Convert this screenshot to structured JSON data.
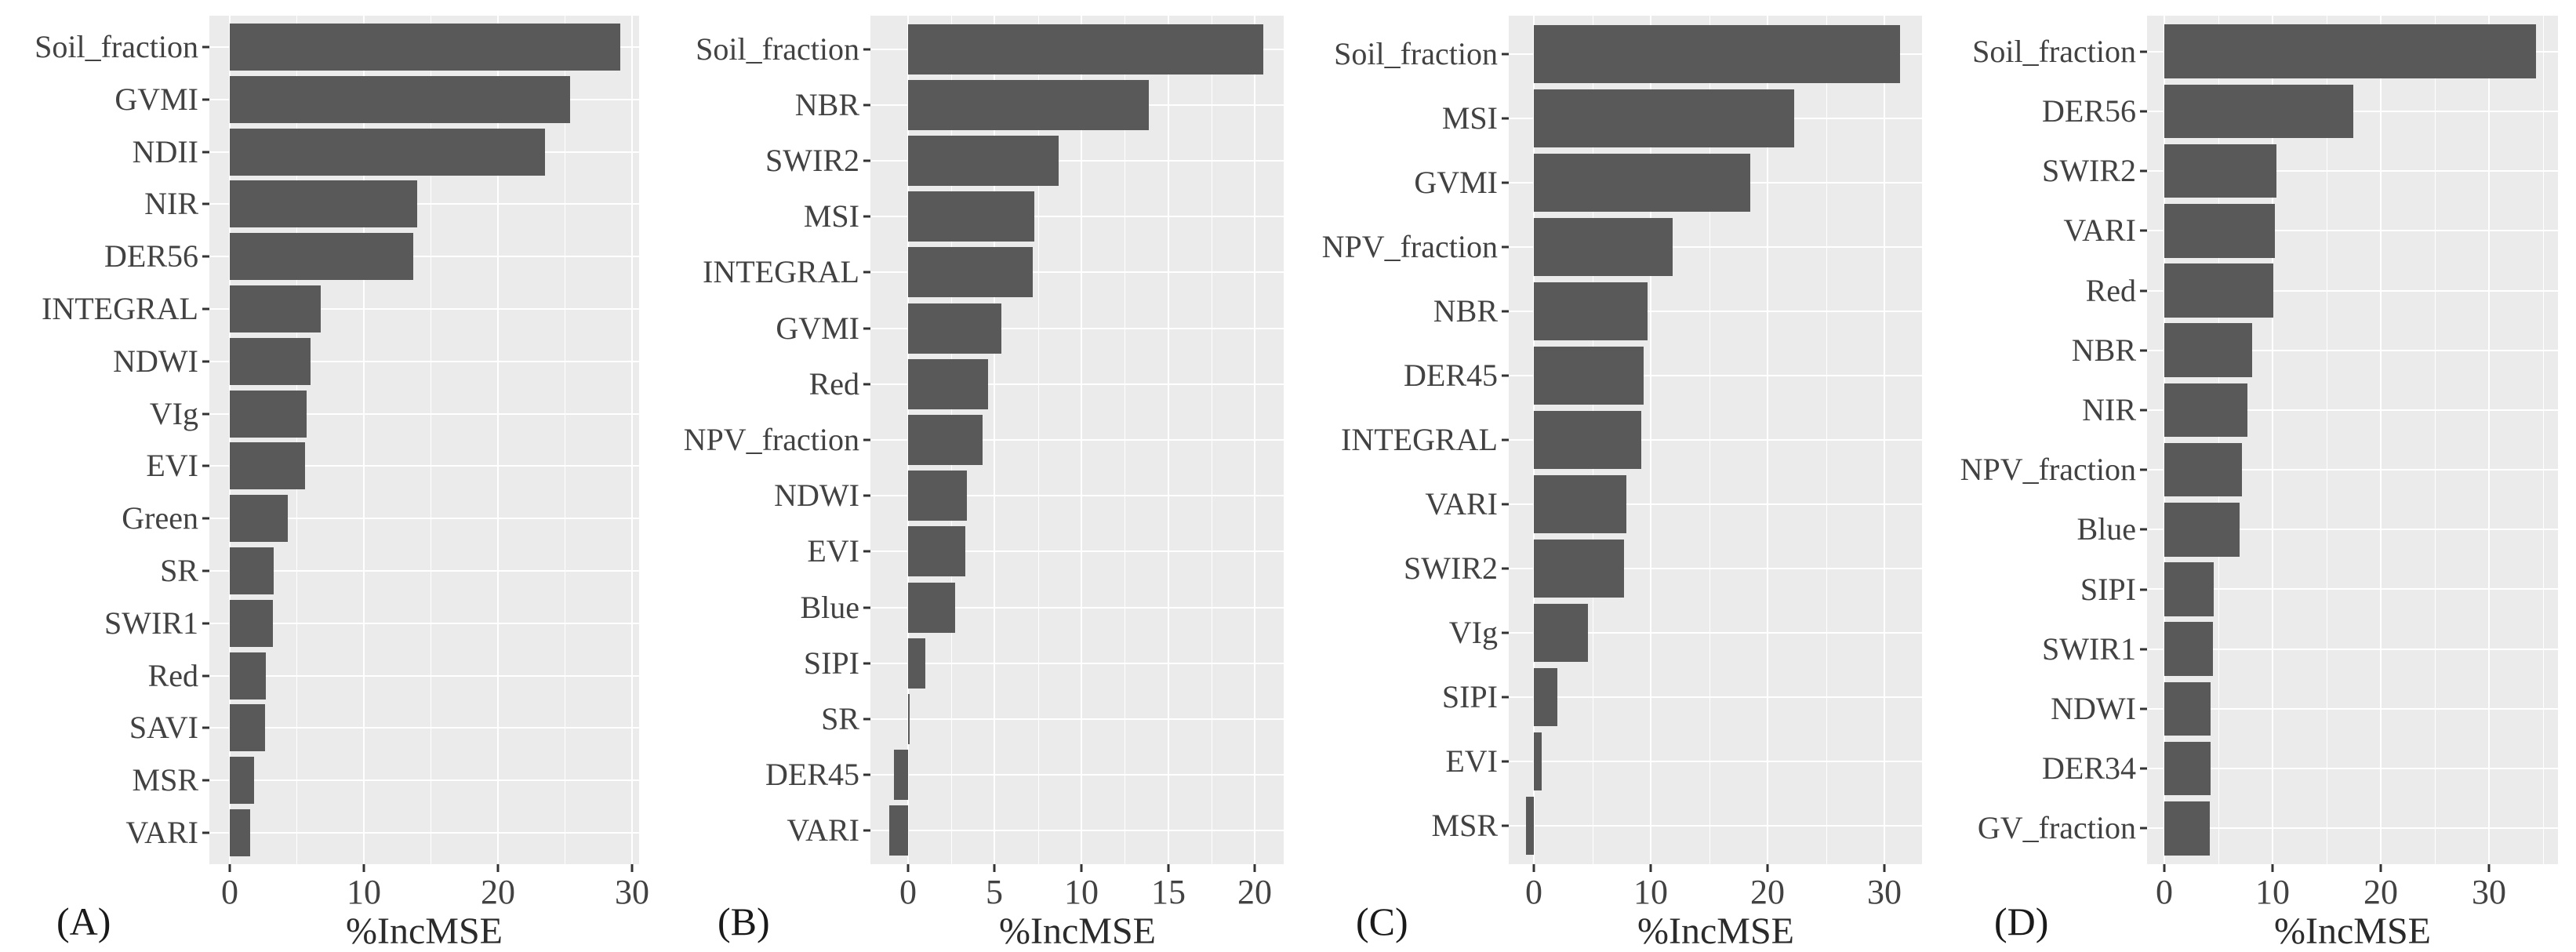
{
  "figure": {
    "xlabel": "%IncMSE",
    "panel_labels": [
      "(A)",
      "(B)",
      "(C)",
      "(D)"
    ],
    "colors": {
      "bar": "#595959",
      "panel_background": "#ebebeb",
      "gridline": "#ffffff",
      "axis_text": "#424242",
      "tick_mark": "#333333"
    }
  },
  "chart_data": [
    {
      "type": "bar",
      "orientation": "horizontal",
      "panel_label": "(A)",
      "xlabel": "%IncMSE",
      "categories": [
        "Soil_fraction",
        "GVMI",
        "NDII",
        "NIR",
        "DER56",
        "INTEGRAL",
        "NDWI",
        "VIg",
        "EVI",
        "Green",
        "SR",
        "SWIR1",
        "Red",
        "SAVI",
        "MSR",
        "VARI"
      ],
      "values": [
        29.1,
        25.4,
        23.5,
        14.0,
        13.7,
        6.8,
        6.0,
        5.7,
        5.6,
        4.3,
        3.3,
        3.2,
        2.7,
        2.6,
        1.8,
        1.5
      ],
      "xticks": [
        0,
        10,
        20,
        30
      ],
      "minor_ticks": [
        5,
        15,
        25
      ],
      "xlim": [
        -1.52,
        30.53
      ],
      "grid": true,
      "legend": false
    },
    {
      "type": "bar",
      "orientation": "horizontal",
      "panel_label": "(B)",
      "xlabel": "%IncMSE",
      "categories": [
        "Soil_fraction",
        "NBR",
        "SWIR2",
        "MSI",
        "INTEGRAL",
        "GVMI",
        "Red",
        "NPV_fraction",
        "NDWI",
        "EVI",
        "Blue",
        "SIPI",
        "SR",
        "DER45",
        "VARI"
      ],
      "values": [
        20.5,
        13.9,
        8.7,
        7.3,
        7.2,
        5.4,
        4.6,
        4.3,
        3.4,
        3.3,
        2.7,
        1.0,
        0.1,
        -0.8,
        -1.1
      ],
      "xticks": [
        0,
        5,
        10,
        15,
        20
      ],
      "minor_ticks": [
        2.5,
        7.5,
        12.5,
        17.5
      ],
      "xlim": [
        -2.17,
        21.67
      ],
      "grid": true,
      "legend": false
    },
    {
      "type": "bar",
      "orientation": "horizontal",
      "panel_label": "(C)",
      "xlabel": "%IncMSE",
      "categories": [
        "Soil_fraction",
        "MSI",
        "GVMI",
        "NPV_fraction",
        "NBR",
        "DER45",
        "INTEGRAL",
        "VARI",
        "SWIR2",
        "VIg",
        "SIPI",
        "EVI",
        "MSR"
      ],
      "values": [
        31.3,
        22.3,
        18.5,
        11.9,
        9.7,
        9.4,
        9.2,
        7.9,
        7.7,
        4.6,
        2.0,
        0.7,
        -0.7
      ],
      "xticks": [
        0,
        10,
        20,
        30
      ],
      "minor_ticks": [
        5,
        15,
        25
      ],
      "xlim": [
        -2.15,
        33.2
      ],
      "grid": true,
      "legend": false
    },
    {
      "type": "bar",
      "orientation": "horizontal",
      "panel_label": "(D)",
      "xlabel": "%IncMSE",
      "categories": [
        "Soil_fraction",
        "DER56",
        "SWIR2",
        "VARI",
        "Red",
        "NBR",
        "NIR",
        "NPV_fraction",
        "Blue",
        "SIPI",
        "SWIR1",
        "NDWI",
        "DER34",
        "GV_fraction"
      ],
      "values": [
        34.4,
        17.5,
        10.4,
        10.2,
        10.1,
        8.1,
        7.7,
        7.2,
        7.0,
        4.6,
        4.5,
        4.3,
        4.3,
        4.2
      ],
      "xticks": [
        0,
        10,
        20,
        30
      ],
      "minor_ticks": [
        5,
        15,
        25,
        35
      ],
      "xlim": [
        -1.59,
        36.4
      ],
      "grid": true,
      "legend": false
    }
  ]
}
